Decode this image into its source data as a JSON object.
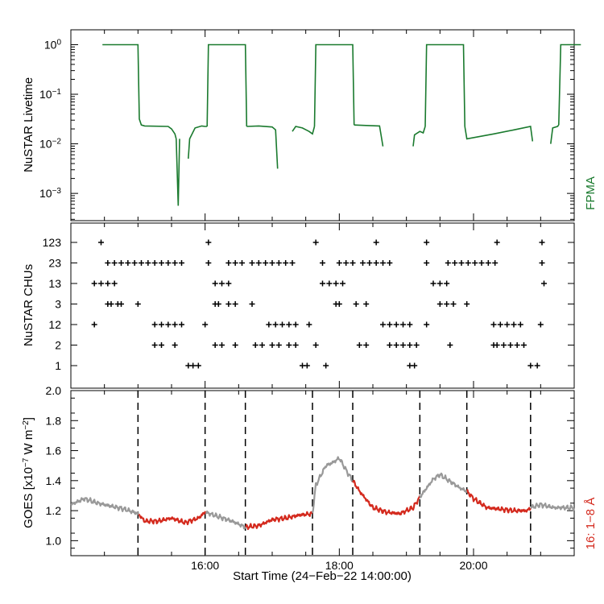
{
  "chart_data": [
    {
      "type": "line",
      "panel": "livetime",
      "ylabel": "NuSTAR Livetime",
      "yscale": "log",
      "ylim_log10": [
        -3.55,
        0.3
      ],
      "yticks": [
        {
          "mant": "10",
          "exp": "0",
          "log": 0
        },
        {
          "mant": "10",
          "exp": "−1",
          "log": -1
        },
        {
          "mant": "10",
          "exp": "−2",
          "log": -2
        },
        {
          "mant": "10",
          "exp": "−3",
          "log": -3
        }
      ],
      "side_label": "FPMA",
      "color": "#1a7a2e",
      "segments": [
        {
          "x": [
            14.47,
            15.0,
            15.02,
            15.05,
            15.1,
            15.45,
            15.5,
            15.55,
            15.57
          ],
          "y": [
            0,
            0,
            -1.5,
            -1.62,
            -1.64,
            -1.65,
            -1.7,
            -1.8,
            -1.9
          ]
        },
        {
          "x": [
            15.57,
            15.6,
            15.62
          ],
          "y": [
            -1.9,
            -3.25,
            -1.9
          ]
        },
        {
          "x": [
            15.75,
            15.77,
            15.85,
            15.95,
            16.0,
            16.03
          ],
          "y": [
            -2.3,
            -1.9,
            -1.68,
            -1.64,
            -1.65,
            -1.65
          ]
        },
        {
          "x": [
            16.03,
            16.05,
            16.6,
            16.62
          ],
          "y": [
            -1.65,
            0,
            0,
            -1.65
          ]
        },
        {
          "x": [
            16.62,
            16.8,
            17.0,
            17.05,
            17.08
          ],
          "y": [
            -1.65,
            -1.64,
            -1.66,
            -1.72,
            -2.5
          ]
        },
        {
          "x": [
            17.3,
            17.35,
            17.45,
            17.55,
            17.6,
            17.63
          ],
          "y": [
            -1.75,
            -1.65,
            -1.68,
            -1.75,
            -1.8,
            -1.65
          ]
        },
        {
          "x": [
            17.63,
            17.65,
            18.2,
            18.22
          ],
          "y": [
            -1.65,
            0,
            0,
            -1.62
          ]
        },
        {
          "x": [
            18.22,
            18.4,
            18.6,
            18.65
          ],
          "y": [
            -1.62,
            -1.63,
            -1.64,
            -2.05
          ]
        },
        {
          "x": [
            19.1,
            19.12,
            19.2,
            19.25,
            19.28
          ],
          "y": [
            -2.05,
            -1.82,
            -1.75,
            -1.78,
            -1.65
          ]
        },
        {
          "x": [
            19.28,
            19.3,
            19.85,
            19.87
          ],
          "y": [
            -1.65,
            0,
            0,
            -1.65
          ]
        },
        {
          "x": [
            19.87,
            19.9,
            20.3,
            20.6,
            20.85,
            20.88
          ],
          "y": [
            -1.65,
            -1.9,
            -1.8,
            -1.72,
            -1.65,
            -1.95
          ]
        },
        {
          "x": [
            21.15,
            21.18,
            21.25,
            21.27
          ],
          "y": [
            -2.0,
            -1.68,
            -1.65,
            -1.62
          ]
        },
        {
          "x": [
            21.27,
            21.3,
            21.6
          ],
          "y": [
            -1.62,
            0,
            0
          ]
        }
      ]
    },
    {
      "type": "scatter",
      "panel": "chus",
      "ylabel": "NuSTAR CHUs",
      "categories": [
        "1",
        "2",
        "12",
        "3",
        "13",
        "23",
        "123"
      ],
      "marker": "+",
      "color": "#000000",
      "points": [
        {
          "c": "123",
          "x": [
            14.45,
            16.05,
            17.65,
            18.55,
            19.3,
            20.35,
            21.02
          ]
        },
        {
          "c": "23",
          "x": [
            14.55,
            14.65,
            14.75,
            14.85,
            14.95,
            15.05,
            15.15,
            15.25,
            15.35,
            15.45,
            15.55,
            15.65,
            16.05,
            16.35,
            16.45,
            16.55,
            16.7,
            16.8,
            16.9,
            17.0,
            17.1,
            17.2,
            17.3,
            17.75,
            18.0,
            18.1,
            18.2,
            18.35,
            18.45,
            18.55,
            18.65,
            18.75,
            19.3,
            19.62,
            19.72,
            19.82,
            19.92,
            20.02,
            20.12,
            20.22,
            20.32,
            21.02
          ]
        },
        {
          "c": "13",
          "x": [
            14.35,
            14.45,
            14.55,
            14.65,
            16.15,
            16.25,
            16.35,
            17.75,
            17.85,
            17.95,
            18.05,
            19.4,
            19.5,
            19.6,
            21.05
          ]
        },
        {
          "c": "3",
          "x": [
            14.55,
            14.6,
            14.7,
            14.75,
            15.0,
            16.15,
            16.2,
            16.35,
            16.45,
            16.7,
            17.95,
            18.0,
            18.25,
            18.4,
            19.5,
            19.6,
            19.7,
            19.9
          ]
        },
        {
          "c": "12",
          "x": [
            14.35,
            15.25,
            15.35,
            15.45,
            15.55,
            15.65,
            16.0,
            16.95,
            17.05,
            17.15,
            17.25,
            17.35,
            17.55,
            18.65,
            18.75,
            18.85,
            18.95,
            19.05,
            19.3,
            20.3,
            20.4,
            20.5,
            20.6,
            20.7,
            21.0
          ]
        },
        {
          "c": "2",
          "x": [
            15.25,
            15.35,
            15.55,
            16.15,
            16.25,
            16.45,
            16.75,
            16.85,
            17.0,
            17.1,
            17.25,
            17.35,
            17.65,
            18.3,
            18.4,
            18.75,
            18.85,
            18.95,
            19.05,
            19.15,
            19.65,
            20.3,
            20.35,
            20.45,
            20.55,
            20.65,
            20.75
          ]
        },
        {
          "c": "1",
          "x": [
            15.75,
            15.82,
            15.9,
            17.45,
            17.52,
            17.8,
            19.05,
            19.12,
            20.85,
            20.95
          ]
        }
      ]
    },
    {
      "type": "line",
      "panel": "goes",
      "xlabel": "Start Time (24−Feb−22 14:00:00)",
      "xlim": [
        14.0,
        21.5
      ],
      "xticks": [
        {
          "v": 16,
          "label": "16:00"
        },
        {
          "v": 18,
          "label": "18:00"
        },
        {
          "v": 20,
          "label": "20:00"
        }
      ],
      "ylabel_pre": "GOES [x10",
      "ylabel_exp1": "−7",
      "ylabel_mid": " W m",
      "ylabel_exp2": "−2",
      "ylabel_post": "]",
      "ylim": [
        0.9,
        2.0
      ],
      "yticks": [
        "1.0",
        "1.2",
        "1.4",
        "1.6",
        "1.8",
        "2.0"
      ],
      "side_label": "16: 1−8 Å",
      "gray_color": "#999999",
      "red_color": "#d42a1e",
      "dashed_lines_x": [
        15.0,
        16.0,
        16.6,
        17.6,
        18.2,
        19.2,
        19.9,
        20.85
      ],
      "x": [
        14.0,
        14.2,
        14.4,
        14.6,
        14.8,
        15.0,
        15.1,
        15.3,
        15.5,
        15.7,
        15.9,
        16.0,
        16.2,
        16.4,
        16.6,
        16.8,
        17.0,
        17.2,
        17.4,
        17.6,
        17.65,
        17.8,
        17.9,
        18.0,
        18.1,
        18.2,
        18.3,
        18.5,
        18.7,
        18.9,
        19.1,
        19.2,
        19.3,
        19.4,
        19.5,
        19.6,
        19.7,
        19.8,
        19.9,
        20.0,
        20.2,
        20.4,
        20.6,
        20.8,
        20.85,
        21.0,
        21.2,
        21.5
      ],
      "y": [
        1.24,
        1.28,
        1.25,
        1.23,
        1.21,
        1.18,
        1.13,
        1.13,
        1.15,
        1.12,
        1.15,
        1.19,
        1.16,
        1.13,
        1.09,
        1.1,
        1.14,
        1.15,
        1.17,
        1.18,
        1.37,
        1.5,
        1.52,
        1.55,
        1.47,
        1.4,
        1.33,
        1.22,
        1.19,
        1.18,
        1.22,
        1.29,
        1.35,
        1.41,
        1.44,
        1.41,
        1.38,
        1.35,
        1.33,
        1.28,
        1.22,
        1.21,
        1.2,
        1.2,
        1.22,
        1.24,
        1.22,
        1.22
      ],
      "red_intervals": [
        [
          15.0,
          16.0
        ],
        [
          16.6,
          17.6
        ],
        [
          18.2,
          19.2
        ],
        [
          19.9,
          20.85
        ]
      ]
    }
  ]
}
